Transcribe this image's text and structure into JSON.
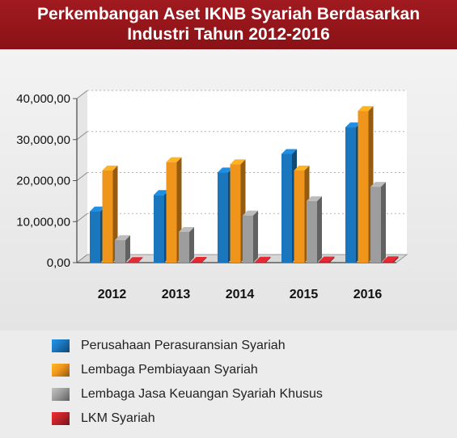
{
  "title": {
    "line1": "Perkembangan Aset IKNB Syariah Berdasarkan",
    "line2": "Industri Tahun 2012-2016"
  },
  "chart_data": {
    "type": "bar",
    "title": "Perkembangan Aset IKNB Syariah Berdasarkan Industri Tahun 2012-2016",
    "categories": [
      "2012",
      "2013",
      "2014",
      "2015",
      "2016"
    ],
    "ylim": [
      0,
      40000
    ],
    "yticks": [
      "0,00",
      "10,000,00",
      "20,000,00",
      "30,000,00",
      "40,000,00"
    ],
    "grid": true,
    "legend_position": "bottom",
    "series": [
      {
        "name": "Perusahaan Perasuransian Syariah",
        "color": "#1a77bd",
        "values": [
          12500,
          16500,
          22000,
          26500,
          33000
        ]
      },
      {
        "name": "Lembaga Pembiayaan Syariah",
        "color": "#f0951c",
        "values": [
          22500,
          24500,
          24000,
          22500,
          37000
        ]
      },
      {
        "name": "Lembaga Jasa Keuangan Syariah Khusus",
        "color": "#9d9d9d",
        "values": [
          5500,
          7500,
          11500,
          15000,
          18500
        ]
      },
      {
        "name": "LKM Syariah",
        "color": "#c0222a",
        "values": [
          150,
          200,
          250,
          300,
          350
        ]
      }
    ]
  }
}
